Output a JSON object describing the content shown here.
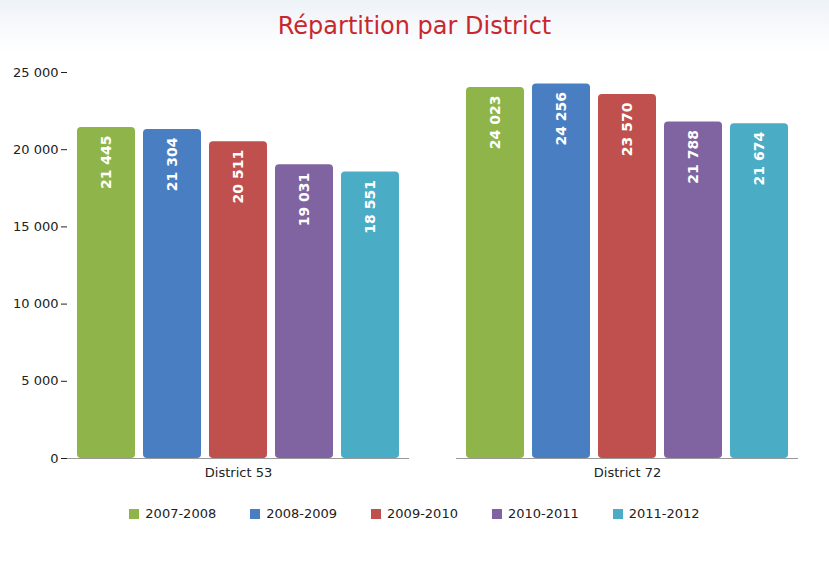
{
  "chart_data": {
    "type": "bar",
    "title": "Répartition par District",
    "categories": [
      "District 53",
      "District 72"
    ],
    "series": [
      {
        "name": "2007-2008",
        "color": "#8fb54a",
        "values": [
          21445,
          24023
        ],
        "value_labels": [
          "21 445",
          "24 023"
        ]
      },
      {
        "name": "2008-2009",
        "color": "#4a7ec2",
        "values": [
          21304,
          24256
        ],
        "value_labels": [
          "21 304",
          "24 256"
        ]
      },
      {
        "name": "2009-2010",
        "color": "#c0504d",
        "values": [
          20511,
          23570
        ],
        "value_labels": [
          "20 511",
          "23 570"
        ]
      },
      {
        "name": "2010-2011",
        "color": "#8064a2",
        "values": [
          19031,
          21788
        ],
        "value_labels": [
          "19 031",
          "21 788"
        ]
      },
      {
        "name": "2011-2012",
        "color": "#4bacc6",
        "values": [
          18551,
          21674
        ],
        "value_labels": [
          "18 551",
          "21 674"
        ]
      }
    ],
    "ylim": [
      0,
      25000
    ],
    "yticks": [
      0,
      {
        "value": 5000,
        "label": "5 000"
      },
      {
        "value": 10000,
        "label": "10 000"
      },
      {
        "value": 15000,
        "label": "15 000"
      },
      {
        "value": 20000,
        "label": "20 000"
      },
      {
        "value": 25000,
        "label": "25 000"
      }
    ],
    "data_labels": true,
    "legend": "bottom",
    "grid": false
  }
}
